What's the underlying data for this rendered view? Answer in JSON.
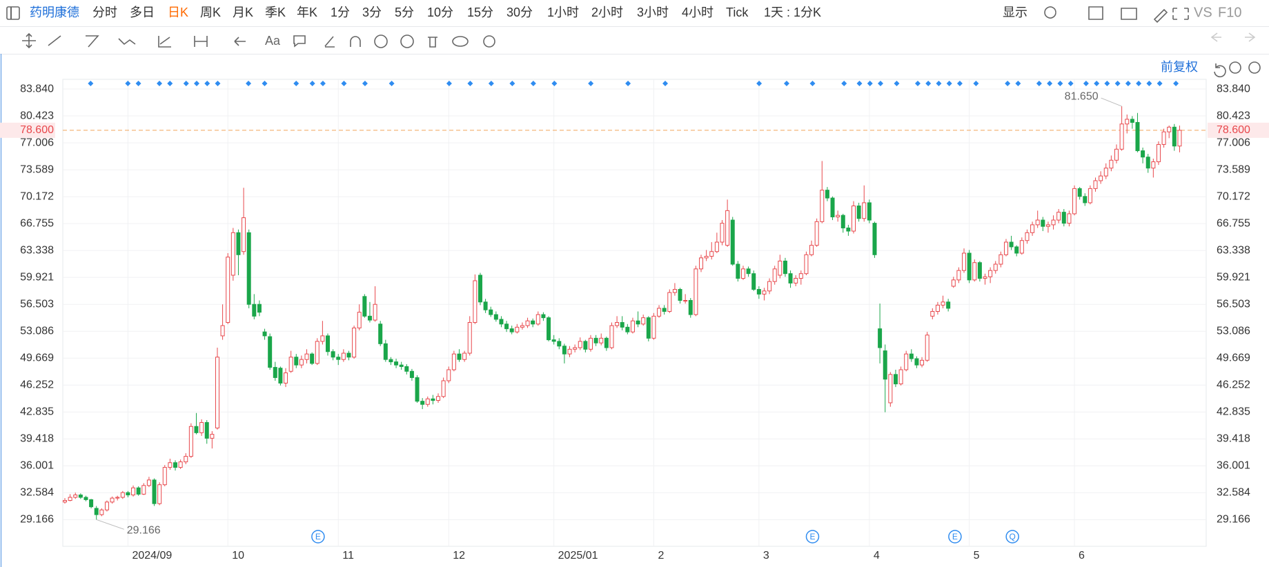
{
  "toolbar": [
    "药明康德",
    "分时",
    "多日",
    "日K",
    "周K",
    "月K",
    "季K",
    "年K",
    "1分",
    "3分",
    "5分",
    "10分",
    "15分",
    "30分",
    "1小时",
    "2小时",
    "3小时",
    "4小时",
    "Tick",
    "1天 : 1分K",
    "显示",
    "VS",
    "F10"
  ],
  "toolbar2": [
    "Aa"
  ],
  "adjust": "前复权",
  "events": [
    "E",
    "E",
    "E",
    "Q"
  ],
  "chart_data": {
    "type": "candlestick",
    "up_color": "#e8474b",
    "down_color": "#1aa64a",
    "up_hollow": true,
    "grid": true,
    "ylim": [
      25.78,
      85.07
    ],
    "yticks": [
      29.166,
      32.584,
      36.001,
      39.418,
      42.835,
      46.252,
      49.669,
      53.086,
      56.503,
      59.921,
      63.338,
      66.755,
      70.172,
      73.589,
      77.006,
      80.423,
      {
        "value": 83.84,
        "label": "83.840"
      }
    ],
    "current_price": {
      "value": 78.6,
      "label": "78.600",
      "color": "#e8474b"
    },
    "max_label": "81.650",
    "min_label": "29.166",
    "categories": [
      null,
      null,
      null,
      null,
      null,
      null,
      null,
      null,
      null,
      null,
      null,
      null,
      "2024/09",
      null,
      null,
      null,
      null,
      null,
      null,
      null,
      null,
      null,
      null,
      null,
      null,
      null,
      null,
      null,
      null,
      null,
      null,
      "10",
      null,
      null,
      null,
      null,
      null,
      null,
      null,
      null,
      null,
      null,
      null,
      null,
      null,
      null,
      null,
      null,
      null,
      null,
      null,
      null,
      "11",
      null,
      null,
      null,
      null,
      null,
      null,
      null,
      null,
      null,
      null,
      null,
      null,
      null,
      null,
      null,
      null,
      null,
      null,
      null,
      null,
      "12",
      null,
      null,
      null,
      null,
      null,
      null,
      null,
      null,
      null,
      null,
      null,
      null,
      null,
      null,
      null,
      null,
      null,
      null,
      null,
      "2025/01",
      null,
      null,
      null,
      null,
      null,
      null,
      null,
      null,
      null,
      null,
      null,
      null,
      null,
      null,
      null,
      null,
      null,
      null,
      "2",
      null,
      null,
      null,
      null,
      null,
      null,
      null,
      null,
      null,
      null,
      null,
      null,
      null,
      null,
      null,
      null,
      null,
      null,
      null,
      "3",
      null,
      null,
      null,
      null,
      null,
      null,
      null,
      null,
      null,
      null,
      null,
      null,
      null,
      null,
      null,
      null,
      null,
      null,
      null,
      null,
      "4",
      null,
      null,
      null,
      null,
      null,
      null,
      null,
      null,
      null,
      null,
      null,
      null,
      null,
      null,
      null,
      null,
      null,
      null,
      "5",
      null,
      null,
      null,
      null,
      null,
      null,
      null,
      null,
      null,
      null,
      null,
      null,
      null,
      null,
      null,
      null,
      null,
      null,
      null,
      "6",
      null,
      null,
      null,
      null,
      null,
      null,
      null,
      null,
      null,
      null,
      null,
      null,
      null,
      null,
      null,
      null,
      null,
      null,
      null,
      null
    ],
    "ohlc": [
      [
        31.4,
        31.9,
        31.2,
        31.6
      ],
      [
        31.6,
        32.4,
        31.5,
        32.0
      ],
      [
        32.0,
        32.6,
        31.8,
        32.3
      ],
      [
        32.3,
        32.5,
        31.8,
        32.0
      ],
      [
        32.0,
        32.2,
        31.5,
        31.7
      ],
      [
        31.7,
        31.8,
        30.6,
        30.8
      ],
      [
        30.6,
        30.9,
        29.166,
        29.8
      ],
      [
        29.8,
        30.6,
        29.6,
        30.4
      ],
      [
        30.4,
        31.6,
        30.2,
        31.4
      ],
      [
        31.4,
        32.1,
        31.2,
        31.9
      ],
      [
        31.9,
        32.2,
        31.6,
        32.0
      ],
      [
        32.0,
        32.8,
        31.8,
        32.6
      ],
      [
        32.6,
        32.8,
        32.0,
        32.3
      ],
      [
        32.3,
        33.5,
        32.1,
        33.2
      ],
      [
        33.2,
        33.4,
        32.2,
        32.4
      ],
      [
        32.4,
        33.8,
        32.3,
        33.5
      ],
      [
        33.5,
        34.6,
        33.3,
        34.2
      ],
      [
        34.2,
        34.4,
        30.9,
        31.2
      ],
      [
        31.2,
        33.9,
        31.0,
        33.6
      ],
      [
        33.6,
        36.1,
        33.4,
        35.8
      ],
      [
        35.8,
        36.9,
        35.5,
        36.4
      ],
      [
        36.4,
        36.7,
        35.4,
        35.8
      ],
      [
        35.8,
        36.8,
        35.6,
        36.5
      ],
      [
        36.5,
        37.6,
        36.2,
        37.2
      ],
      [
        37.2,
        41.4,
        37.0,
        41.0
      ],
      [
        41.0,
        42.7,
        40.0,
        40.2
      ],
      [
        40.2,
        41.9,
        39.8,
        41.5
      ],
      [
        41.5,
        41.8,
        38.8,
        39.5
      ],
      [
        39.5,
        40.4,
        38.2,
        40.0
      ],
      [
        40.8,
        51.0,
        40.6,
        49.8
      ],
      [
        52.5,
        56.5,
        52.0,
        53.8
      ],
      [
        54.2,
        63.0,
        54.0,
        62.5
      ],
      [
        60.2,
        66.2,
        59.5,
        65.6
      ],
      [
        65.6,
        66.0,
        60.2,
        62.8
      ],
      [
        63.2,
        71.3,
        62.8,
        67.5
      ],
      [
        65.6,
        66.0,
        56.0,
        56.5
      ],
      [
        56.5,
        57.8,
        54.6,
        55.0
      ],
      [
        56.5,
        57.0,
        55.0,
        55.5
      ],
      [
        53.0,
        53.4,
        52.0,
        52.5
      ],
      [
        52.4,
        52.8,
        48.2,
        48.5
      ],
      [
        48.5,
        49.2,
        46.8,
        47.2
      ],
      [
        48.4,
        48.6,
        46.2,
        46.5
      ],
      [
        46.5,
        48.4,
        46.0,
        47.8
      ],
      [
        48.0,
        50.6,
        47.8,
        49.8
      ],
      [
        49.8,
        50.2,
        48.4,
        48.8
      ],
      [
        48.8,
        50.0,
        48.4,
        49.5
      ],
      [
        49.5,
        50.8,
        49.0,
        50.2
      ],
      [
        50.2,
        50.4,
        48.8,
        49.0
      ],
      [
        49.0,
        52.2,
        48.8,
        51.8
      ],
      [
        51.8,
        54.4,
        51.4,
        52.5
      ],
      [
        52.5,
        52.8,
        50.0,
        50.5
      ],
      [
        50.5,
        50.8,
        49.4,
        49.8
      ],
      [
        49.8,
        50.2,
        48.8,
        49.5
      ],
      [
        49.5,
        50.8,
        49.2,
        50.3
      ],
      [
        50.3,
        50.6,
        49.4,
        49.8
      ],
      [
        49.8,
        53.8,
        49.6,
        53.5
      ],
      [
        53.5,
        56.5,
        53.2,
        55.5
      ],
      [
        57.5,
        57.8,
        54.8,
        55.0
      ],
      [
        55.0,
        56.8,
        54.2,
        54.5
      ],
      [
        54.5,
        58.8,
        54.3,
        56.5
      ],
      [
        54.0,
        54.4,
        51.2,
        51.5
      ],
      [
        51.5,
        52.0,
        49.2,
        49.5
      ],
      [
        49.5,
        49.8,
        48.8,
        49.2
      ],
      [
        49.2,
        49.6,
        48.4,
        48.8
      ],
      [
        48.8,
        49.2,
        48.2,
        48.6
      ],
      [
        48.6,
        48.9,
        47.6,
        48.0
      ],
      [
        48.0,
        48.3,
        46.8,
        47.2
      ],
      [
        47.2,
        47.5,
        44.0,
        44.2
      ],
      [
        44.2,
        44.6,
        43.2,
        43.8
      ],
      [
        43.8,
        44.8,
        43.5,
        44.5
      ],
      [
        44.5,
        45.0,
        43.8,
        44.3
      ],
      [
        44.3,
        45.2,
        44.0,
        44.8
      ],
      [
        44.8,
        47.2,
        44.6,
        46.8
      ],
      [
        46.8,
        48.6,
        46.5,
        48.2
      ],
      [
        48.2,
        50.6,
        48.0,
        50.2
      ],
      [
        50.2,
        50.8,
        49.2,
        49.5
      ],
      [
        49.5,
        50.6,
        49.2,
        50.3
      ],
      [
        50.3,
        55.0,
        50.0,
        54.2
      ],
      [
        54.2,
        60.3,
        54.0,
        59.5
      ],
      [
        60.2,
        60.5,
        56.4,
        56.8
      ],
      [
        56.8,
        57.2,
        55.4,
        55.8
      ],
      [
        55.8,
        56.2,
        54.9,
        55.2
      ],
      [
        55.2,
        55.6,
        54.3,
        54.6
      ],
      [
        54.6,
        55.0,
        53.6,
        54.0
      ],
      [
        54.0,
        54.4,
        53.0,
        53.4
      ],
      [
        53.4,
        53.8,
        52.7,
        53.0
      ],
      [
        53.0,
        54.0,
        52.8,
        53.6
      ],
      [
        53.6,
        54.2,
        53.3,
        53.8
      ],
      [
        53.8,
        54.8,
        53.5,
        54.4
      ],
      [
        54.4,
        54.7,
        53.6,
        54.0
      ],
      [
        54.0,
        55.6,
        53.8,
        55.2
      ],
      [
        55.2,
        55.5,
        54.4,
        54.8
      ],
      [
        54.8,
        55.0,
        51.8,
        52.0
      ],
      [
        52.0,
        52.6,
        51.4,
        51.8
      ],
      [
        51.8,
        52.2,
        50.8,
        51.2
      ],
      [
        51.2,
        51.5,
        49.0,
        50.2
      ],
      [
        50.2,
        51.2,
        49.8,
        50.8
      ],
      [
        50.8,
        51.4,
        50.4,
        51.0
      ],
      [
        51.0,
        52.3,
        50.7,
        51.8
      ],
      [
        51.8,
        52.0,
        50.4,
        50.8
      ],
      [
        50.8,
        52.6,
        50.5,
        52.2
      ],
      [
        52.2,
        52.6,
        51.2,
        51.6
      ],
      [
        51.6,
        52.8,
        51.3,
        52.2
      ],
      [
        52.2,
        52.4,
        50.6,
        51.0
      ],
      [
        51.0,
        54.2,
        50.8,
        53.8
      ],
      [
        53.8,
        55.0,
        53.5,
        54.2
      ],
      [
        54.2,
        55.0,
        53.2,
        53.6
      ],
      [
        53.6,
        54.0,
        52.7,
        53.0
      ],
      [
        53.0,
        54.8,
        52.8,
        54.4
      ],
      [
        54.4,
        55.6,
        53.6,
        54.0
      ],
      [
        54.0,
        55.2,
        53.8,
        54.8
      ],
      [
        54.8,
        55.0,
        51.8,
        52.2
      ],
      [
        52.2,
        55.4,
        52.0,
        55.0
      ],
      [
        55.0,
        56.4,
        54.8,
        56.0
      ],
      [
        56.0,
        56.4,
        55.2,
        55.6
      ],
      [
        55.6,
        58.4,
        55.4,
        58.0
      ],
      [
        58.0,
        59.2,
        57.6,
        58.4
      ],
      [
        58.4,
        58.6,
        56.6,
        57.0
      ],
      [
        57.0,
        57.8,
        56.6,
        57.0
      ],
      [
        57.0,
        57.3,
        54.8,
        55.2
      ],
      [
        55.2,
        61.4,
        55.0,
        61.0
      ],
      [
        61.0,
        62.8,
        60.6,
        62.4
      ],
      [
        62.4,
        63.4,
        62.0,
        62.6
      ],
      [
        62.6,
        64.4,
        62.2,
        63.2
      ],
      [
        63.2,
        65.6,
        63.0,
        64.4
      ],
      [
        64.4,
        67.2,
        64.0,
        66.8
      ],
      [
        64.0,
        69.8,
        63.8,
        68.4
      ],
      [
        67.2,
        67.6,
        61.4,
        61.6
      ],
      [
        61.6,
        62.0,
        59.4,
        59.8
      ],
      [
        59.8,
        61.4,
        59.6,
        61.0
      ],
      [
        61.0,
        61.3,
        60.0,
        60.4
      ],
      [
        60.4,
        60.8,
        58.2,
        58.4
      ],
      [
        58.4,
        58.8,
        57.2,
        57.8
      ],
      [
        57.8,
        58.6,
        57.0,
        58.2
      ],
      [
        58.2,
        59.8,
        57.8,
        59.4
      ],
      [
        59.4,
        61.4,
        59.0,
        61.0
      ],
      [
        60.2,
        62.8,
        59.8,
        62.0
      ],
      [
        62.0,
        62.4,
        60.0,
        60.4
      ],
      [
        60.4,
        60.8,
        58.6,
        59.2
      ],
      [
        59.2,
        60.2,
        58.8,
        59.8
      ],
      [
        59.8,
        60.8,
        59.0,
        60.4
      ],
      [
        60.4,
        63.2,
        60.2,
        62.8
      ],
      [
        62.8,
        64.6,
        62.6,
        64.0
      ],
      [
        64.0,
        67.4,
        63.8,
        67.0
      ],
      [
        67.0,
        74.7,
        66.8,
        71.0
      ],
      [
        71.0,
        71.4,
        69.6,
        70.0
      ],
      [
        70.0,
        70.2,
        67.2,
        67.6
      ],
      [
        67.6,
        68.4,
        67.0,
        67.8
      ],
      [
        67.8,
        68.0,
        65.6,
        66.2
      ],
      [
        66.2,
        66.6,
        65.2,
        65.8
      ],
      [
        65.8,
        69.6,
        65.5,
        69.0
      ],
      [
        69.0,
        69.4,
        67.0,
        67.4
      ],
      [
        67.4,
        71.6,
        67.0,
        69.4
      ],
      [
        69.4,
        69.8,
        66.8,
        67.2
      ],
      [
        66.8,
        67.0,
        62.4,
        62.8
      ],
      [
        53.4,
        56.6,
        49.0,
        51.0
      ],
      [
        50.6,
        51.4,
        42.8,
        47.0
      ],
      [
        44.0,
        47.9,
        43.5,
        47.6
      ],
      [
        47.6,
        48.2,
        46.0,
        46.4
      ],
      [
        46.4,
        48.6,
        46.2,
        48.2
      ],
      [
        48.2,
        50.6,
        48.0,
        50.2
      ],
      [
        50.2,
        50.8,
        49.2,
        49.6
      ],
      [
        49.6,
        49.9,
        48.4,
        48.8
      ],
      [
        48.8,
        49.8,
        48.5,
        49.4
      ],
      [
        49.4,
        53.0,
        49.2,
        52.6
      ],
      [
        55.0,
        56.0,
        54.6,
        55.6
      ],
      [
        55.6,
        56.8,
        55.2,
        56.4
      ],
      [
        56.4,
        57.6,
        56.0,
        56.8
      ],
      [
        56.8,
        57.2,
        55.6,
        56.0
      ],
      [
        58.8,
        60.0,
        58.6,
        59.6
      ],
      [
        59.6,
        61.2,
        59.2,
        60.8
      ],
      [
        60.8,
        63.6,
        60.5,
        63.0
      ],
      [
        63.0,
        63.4,
        59.2,
        59.6
      ],
      [
        59.6,
        62.2,
        59.4,
        61.8
      ],
      [
        61.8,
        62.0,
        59.4,
        59.8
      ],
      [
        59.8,
        60.4,
        59.0,
        60.0
      ],
      [
        60.0,
        61.2,
        59.2,
        60.8
      ],
      [
        60.8,
        62.0,
        60.4,
        61.6
      ],
      [
        61.6,
        63.2,
        61.2,
        62.8
      ],
      [
        62.8,
        64.8,
        62.6,
        64.4
      ],
      [
        64.4,
        65.2,
        63.4,
        63.8
      ],
      [
        63.8,
        64.0,
        62.6,
        63.0
      ],
      [
        63.0,
        65.0,
        62.8,
        64.6
      ],
      [
        64.6,
        66.0,
        64.2,
        65.6
      ],
      [
        65.6,
        67.0,
        65.2,
        66.6
      ],
      [
        66.6,
        68.4,
        66.2,
        67.2
      ],
      [
        67.2,
        67.6,
        65.8,
        66.4
      ],
      [
        66.4,
        67.0,
        65.6,
        66.6
      ],
      [
        66.6,
        67.8,
        66.0,
        67.2
      ],
      [
        67.2,
        68.6,
        66.8,
        68.2
      ],
      [
        68.2,
        68.6,
        66.4,
        66.8
      ],
      [
        66.8,
        68.4,
        66.4,
        68.0
      ],
      [
        68.0,
        71.6,
        67.8,
        71.2
      ],
      [
        71.2,
        71.4,
        69.8,
        70.2
      ],
      [
        70.2,
        70.6,
        69.0,
        69.4
      ],
      [
        69.4,
        71.6,
        69.2,
        71.2
      ],
      [
        71.2,
        72.6,
        70.8,
        72.2
      ],
      [
        72.2,
        73.4,
        71.8,
        72.8
      ],
      [
        72.8,
        74.4,
        72.4,
        73.8
      ],
      [
        73.8,
        75.4,
        73.4,
        74.8
      ],
      [
        74.8,
        76.8,
        74.4,
        76.2
      ],
      [
        76.2,
        81.65,
        76.0,
        79.4
      ],
      [
        79.4,
        80.6,
        78.2,
        80.0
      ],
      [
        80.0,
        80.4,
        78.8,
        79.6
      ],
      [
        79.6,
        80.8,
        75.8,
        76.0
      ],
      [
        76.0,
        76.4,
        74.4,
        75.2
      ],
      [
        75.2,
        75.6,
        73.2,
        73.8
      ],
      [
        73.8,
        75.0,
        72.6,
        74.6
      ],
      [
        74.6,
        77.2,
        74.2,
        76.8
      ],
      [
        76.8,
        78.8,
        76.4,
        78.4
      ],
      [
        78.4,
        79.2,
        77.6,
        79.0
      ],
      [
        79.0,
        79.4,
        76.0,
        76.6
      ],
      [
        76.6,
        79.2,
        75.8,
        78.6
      ]
    ]
  }
}
